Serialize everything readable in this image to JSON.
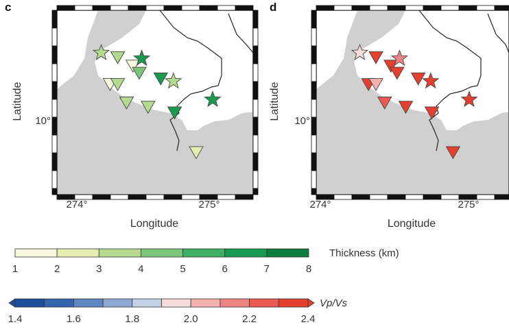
{
  "panels": [
    {
      "label": "c",
      "xlabel": "Longitude",
      "ylabel": "Latitude",
      "xticks": [
        "274°",
        "275°"
      ],
      "yticks": [
        "10°"
      ]
    },
    {
      "label": "d",
      "xlabel": "Longitude",
      "ylabel": "Latitude",
      "xticks": [
        "274°",
        "275°"
      ],
      "yticks": [
        "10°"
      ]
    }
  ],
  "colorbars": {
    "thickness": {
      "title": "Thickness (km)",
      "ticks": [
        "1",
        "2",
        "3",
        "4",
        "5",
        "6",
        "7",
        "8"
      ],
      "colors": [
        "#f7f8dc",
        "#e4ecb4",
        "#b5d98e",
        "#7cc679",
        "#3cb165",
        "#189a51",
        "#0d7d3e",
        "#0a5a2b"
      ]
    },
    "vpvs": {
      "title": "Vp/Vs",
      "ticks": [
        "1.4",
        "1.6",
        "1.8",
        "2.0",
        "2.2",
        "2.4"
      ],
      "colors": [
        "#1f4e9c",
        "#3566ad",
        "#5e86c2",
        "#8ea8d2",
        "#c3d2e6",
        "#f6dcdc",
        "#f4b1ae",
        "#ef8582",
        "#ea5a52",
        "#e5402f"
      ]
    }
  },
  "chart_data": [
    {
      "type": "scatter",
      "panel": "c",
      "variable": "Thickness (km)",
      "xlabel": "Longitude",
      "ylabel": "Latitude",
      "xlim": [
        273.8,
        275.35
      ],
      "ylim": [
        9.4,
        10.7
      ],
      "points": [
        {
          "lon": 274.15,
          "lat": 10.4,
          "marker": "star",
          "value": 3.0
        },
        {
          "lon": 274.28,
          "lat": 10.37,
          "marker": "triangle",
          "value": 3.0
        },
        {
          "lon": 274.4,
          "lat": 10.31,
          "marker": "triangle",
          "value": 1.5
        },
        {
          "lon": 274.47,
          "lat": 10.36,
          "marker": "star",
          "value": 6.0
        },
        {
          "lon": 274.45,
          "lat": 10.26,
          "marker": "triangle",
          "value": 4.0
        },
        {
          "lon": 274.62,
          "lat": 10.22,
          "marker": "triangle",
          "value": 6.0
        },
        {
          "lon": 274.72,
          "lat": 10.2,
          "marker": "star",
          "value": 3.0
        },
        {
          "lon": 274.22,
          "lat": 10.18,
          "marker": "triangle",
          "value": 1.5
        },
        {
          "lon": 274.28,
          "lat": 10.18,
          "marker": "triangle",
          "value": 3.0
        },
        {
          "lon": 275.03,
          "lat": 10.07,
          "marker": "star",
          "value": 6.0
        },
        {
          "lon": 274.35,
          "lat": 10.05,
          "marker": "triangle",
          "value": 3.0
        },
        {
          "lon": 274.52,
          "lat": 10.02,
          "marker": "triangle",
          "value": 3.0
        },
        {
          "lon": 274.73,
          "lat": 9.98,
          "marker": "triangle",
          "value": 6.0
        },
        {
          "lon": 274.9,
          "lat": 9.7,
          "marker": "triangle",
          "value": 2.0
        }
      ]
    },
    {
      "type": "scatter",
      "panel": "d",
      "variable": "Vp/Vs",
      "xlabel": "Longitude",
      "ylabel": "Latitude",
      "xlim": [
        273.8,
        275.35
      ],
      "ylim": [
        9.4,
        10.7
      ],
      "points": [
        {
          "lon": 274.15,
          "lat": 10.4,
          "marker": "star",
          "value": 1.95
        },
        {
          "lon": 274.28,
          "lat": 10.37,
          "marker": "triangle",
          "value": 2.35
        },
        {
          "lon": 274.4,
          "lat": 10.31,
          "marker": "triangle",
          "value": 2.35
        },
        {
          "lon": 274.47,
          "lat": 10.36,
          "marker": "star",
          "value": 2.15
        },
        {
          "lon": 274.45,
          "lat": 10.26,
          "marker": "triangle",
          "value": 2.35
        },
        {
          "lon": 274.62,
          "lat": 10.22,
          "marker": "triangle",
          "value": 2.35
        },
        {
          "lon": 274.72,
          "lat": 10.2,
          "marker": "star",
          "value": 2.35
        },
        {
          "lon": 274.22,
          "lat": 10.18,
          "marker": "triangle",
          "value": 2.35
        },
        {
          "lon": 274.28,
          "lat": 10.18,
          "marker": "triangle",
          "value": 2.05
        },
        {
          "lon": 275.03,
          "lat": 10.07,
          "marker": "star",
          "value": 2.35
        },
        {
          "lon": 274.35,
          "lat": 10.05,
          "marker": "triangle",
          "value": 2.25
        },
        {
          "lon": 274.52,
          "lat": 10.02,
          "marker": "triangle",
          "value": 2.35
        },
        {
          "lon": 274.73,
          "lat": 9.98,
          "marker": "triangle",
          "value": 2.35
        },
        {
          "lon": 274.9,
          "lat": 9.7,
          "marker": "triangle",
          "value": 2.35
        }
      ]
    }
  ]
}
